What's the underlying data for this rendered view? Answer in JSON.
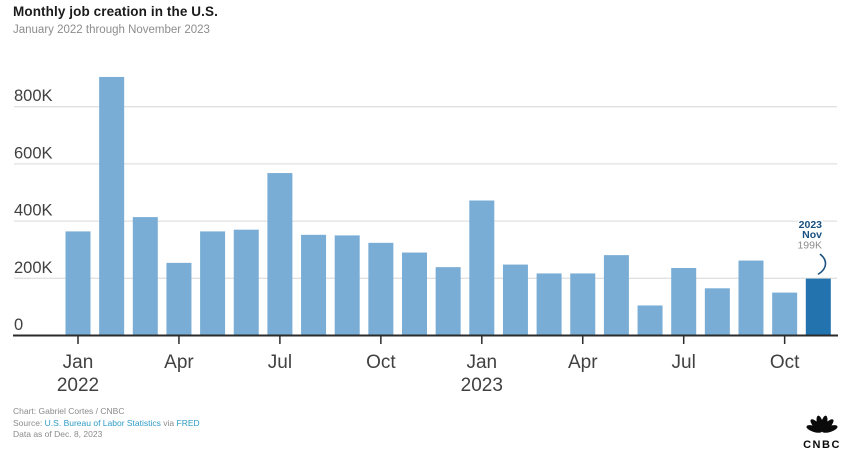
{
  "header": {
    "title": "Monthly job creation in the U.S.",
    "subtitle": "January 2022 through November 2023"
  },
  "chart_data": {
    "type": "bar",
    "title": "Monthly job creation in the U.S.",
    "subtitle": "January 2022 through November 2023",
    "unit": "thousands of jobs",
    "categories": [
      "Jan 2022",
      "Feb 2022",
      "Mar 2022",
      "Apr 2022",
      "May 2022",
      "Jun 2022",
      "Jul 2022",
      "Aug 2022",
      "Sep 2022",
      "Oct 2022",
      "Nov 2022",
      "Dec 2022",
      "Jan 2023",
      "Feb 2023",
      "Mar 2023",
      "Apr 2023",
      "May 2023",
      "Jun 2023",
      "Jul 2023",
      "Aug 2023",
      "Sep 2023",
      "Oct 2023",
      "Nov 2023"
    ],
    "values": [
      364,
      904,
      414,
      254,
      364,
      370,
      568,
      352,
      350,
      324,
      290,
      239,
      472,
      248,
      217,
      217,
      281,
      105,
      236,
      165,
      262,
      150,
      199
    ],
    "highlight_index": 22,
    "ylim": [
      0,
      950
    ],
    "grid": true,
    "legend": "none",
    "y_ticks": [
      {
        "value": 0,
        "label": "0"
      },
      {
        "value": 200,
        "label": "200K"
      },
      {
        "value": 400,
        "label": "400K"
      },
      {
        "value": 600,
        "label": "600K"
      },
      {
        "value": 800,
        "label": "800K"
      }
    ],
    "x_ticks": [
      {
        "index": 0,
        "label": "Jan",
        "year": "2022"
      },
      {
        "index": 3,
        "label": "Apr",
        "year": ""
      },
      {
        "index": 6,
        "label": "Jul",
        "year": ""
      },
      {
        "index": 9,
        "label": "Oct",
        "year": ""
      },
      {
        "index": 12,
        "label": "Jan",
        "year": "2023"
      },
      {
        "index": 15,
        "label": "Apr",
        "year": ""
      },
      {
        "index": 18,
        "label": "Jul",
        "year": ""
      },
      {
        "index": 21,
        "label": "Oct",
        "year": ""
      }
    ],
    "annotation": {
      "line1": "2023",
      "line2": "Nov",
      "line3": "199K",
      "target_index": 22
    },
    "colors": {
      "bar": "#79add6",
      "bar_highlight": "#2273ae",
      "gridline": "#e1e1e1",
      "axis": "#2b2b2b",
      "tick_label": "#414141",
      "annotation_text": "#1a5180",
      "annotation_value": "#8d8d8d"
    }
  },
  "footer": {
    "credit": "Chart: Gabriel Cortes / CNBC",
    "source_label": "Source:",
    "source_link1": "U.S. Bureau of Labor Statistics",
    "via_label": "via",
    "source_link2": "FRED",
    "data_as_of": "Data as of Dec. 8, 2023",
    "logo_text": "CNBC"
  }
}
